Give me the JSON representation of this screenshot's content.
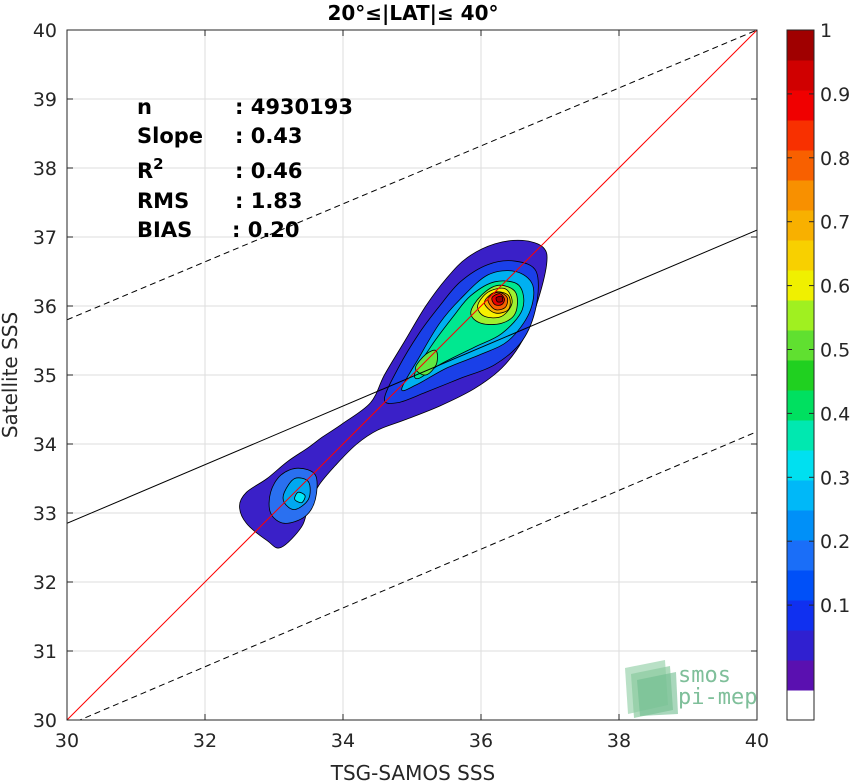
{
  "chart_data": {
    "type": "density-scatter",
    "title": "20°≤|LAT|≤ 40°",
    "xlabel": "TSG-SAMOS SSS",
    "ylabel": "Satellite SSS",
    "xlim": [
      30,
      40
    ],
    "ylim": [
      30,
      40
    ],
    "xticks": [
      30,
      32,
      34,
      36,
      38,
      40
    ],
    "yticks": [
      30,
      31,
      32,
      33,
      34,
      35,
      36,
      37,
      38,
      39,
      40
    ],
    "grid": true,
    "stats": [
      {
        "label": "n",
        "value": ": 4930193"
      },
      {
        "label": "Slope",
        "value": ": 0.43"
      },
      {
        "label": "R",
        "sup": "2",
        "value": ": 0.46"
      },
      {
        "label": "RMS",
        "value": ": 1.83"
      },
      {
        "label": "BIAS",
        "value": ": 0.20"
      }
    ],
    "lines": [
      {
        "name": "identity",
        "style": "solid",
        "color": "#ff0000",
        "points": [
          [
            30,
            30
          ],
          [
            40,
            40
          ]
        ]
      },
      {
        "name": "regression",
        "style": "solid",
        "color": "#000000",
        "points": [
          [
            30,
            32.85
          ],
          [
            40,
            37.1
          ]
        ]
      },
      {
        "name": "upper-bound",
        "style": "dashed",
        "color": "#000000",
        "points": [
          [
            30,
            35.8
          ],
          [
            40,
            40.0
          ]
        ]
      },
      {
        "name": "lower-bound",
        "style": "dashed",
        "color": "#000000",
        "points": [
          [
            30,
            29.92
          ],
          [
            40,
            34.18
          ]
        ]
      }
    ],
    "density_contours": [
      {
        "level": 0.05,
        "color": "#3a20c8",
        "points": [
          [
            32.5,
            33.1
          ],
          [
            32.6,
            33.3
          ],
          [
            32.9,
            33.5
          ],
          [
            33.2,
            33.75
          ],
          [
            33.5,
            33.95
          ],
          [
            33.7,
            34.1
          ],
          [
            34.0,
            34.3
          ],
          [
            34.4,
            34.6
          ],
          [
            34.6,
            35.0
          ],
          [
            34.9,
            35.5
          ],
          [
            35.2,
            36.0
          ],
          [
            35.5,
            36.4
          ],
          [
            35.8,
            36.7
          ],
          [
            36.2,
            36.9
          ],
          [
            36.6,
            36.95
          ],
          [
            36.9,
            36.85
          ],
          [
            36.95,
            36.6
          ],
          [
            36.8,
            36.0
          ],
          [
            36.6,
            35.5
          ],
          [
            36.3,
            35.1
          ],
          [
            35.9,
            34.8
          ],
          [
            35.4,
            34.55
          ],
          [
            34.9,
            34.35
          ],
          [
            34.5,
            34.2
          ],
          [
            34.2,
            34.0
          ],
          [
            33.9,
            33.7
          ],
          [
            33.65,
            33.4
          ],
          [
            33.5,
            33.1
          ],
          [
            33.4,
            32.8
          ],
          [
            33.1,
            32.5
          ],
          [
            32.9,
            32.6
          ],
          [
            32.6,
            32.85
          ]
        ]
      },
      {
        "level": 0.2,
        "color": "#2a70f0",
        "points": [
          [
            32.95,
            33.3
          ],
          [
            33.1,
            33.55
          ],
          [
            33.35,
            33.65
          ],
          [
            33.6,
            33.55
          ],
          [
            33.6,
            33.2
          ],
          [
            33.45,
            32.95
          ],
          [
            33.15,
            32.85
          ],
          [
            32.95,
            33.0
          ]
        ]
      },
      {
        "level": 0.3,
        "color": "#00a8f0",
        "points": [
          [
            33.15,
            33.3
          ],
          [
            33.3,
            33.5
          ],
          [
            33.5,
            33.45
          ],
          [
            33.5,
            33.2
          ],
          [
            33.3,
            33.05
          ],
          [
            33.15,
            33.15
          ]
        ]
      },
      {
        "level": 0.4,
        "color": "#00e8f8",
        "points": [
          [
            33.3,
            33.2
          ],
          [
            33.35,
            33.3
          ],
          [
            33.45,
            33.25
          ],
          [
            33.4,
            33.15
          ]
        ]
      },
      {
        "level": 0.2,
        "color": "#1a40e8",
        "points": [
          [
            34.6,
            34.65
          ],
          [
            34.8,
            35.1
          ],
          [
            35.1,
            35.6
          ],
          [
            35.4,
            36.0
          ],
          [
            35.7,
            36.35
          ],
          [
            36.1,
            36.6
          ],
          [
            36.5,
            36.65
          ],
          [
            36.8,
            36.5
          ],
          [
            36.8,
            36.0
          ],
          [
            36.6,
            35.5
          ],
          [
            36.2,
            35.15
          ],
          [
            35.7,
            34.95
          ],
          [
            35.2,
            34.75
          ],
          [
            34.8,
            34.6
          ]
        ]
      },
      {
        "level": 0.3,
        "color": "#00b0f0",
        "points": [
          [
            34.85,
            34.8
          ],
          [
            35.1,
            35.25
          ],
          [
            35.4,
            35.75
          ],
          [
            35.7,
            36.1
          ],
          [
            36.1,
            36.45
          ],
          [
            36.5,
            36.5
          ],
          [
            36.75,
            36.3
          ],
          [
            36.7,
            35.9
          ],
          [
            36.4,
            35.5
          ],
          [
            36.0,
            35.3
          ],
          [
            35.5,
            35.1
          ],
          [
            35.05,
            34.85
          ]
        ]
      },
      {
        "level": 0.45,
        "color": "#00e890",
        "points": [
          [
            35.05,
            35.05
          ],
          [
            35.3,
            35.45
          ],
          [
            35.6,
            35.85
          ],
          [
            35.85,
            36.15
          ],
          [
            36.2,
            36.35
          ],
          [
            36.55,
            36.3
          ],
          [
            36.6,
            35.95
          ],
          [
            36.3,
            35.6
          ],
          [
            35.9,
            35.4
          ],
          [
            35.4,
            35.15
          ],
          [
            35.1,
            34.95
          ]
        ]
      },
      {
        "level": 0.55,
        "color": "#a0f030",
        "points": [
          [
            35.85,
            35.9
          ],
          [
            36.0,
            36.15
          ],
          [
            36.25,
            36.3
          ],
          [
            36.5,
            36.2
          ],
          [
            36.5,
            35.9
          ],
          [
            36.3,
            35.75
          ],
          [
            36.0,
            35.75
          ]
        ]
      },
      {
        "level": 0.6,
        "color": "#f8f000",
        "points": [
          [
            35.95,
            36.0
          ],
          [
            36.1,
            36.2
          ],
          [
            36.35,
            36.25
          ],
          [
            36.45,
            36.05
          ],
          [
            36.3,
            35.85
          ],
          [
            36.05,
            35.85
          ]
        ]
      },
      {
        "level": 0.7,
        "color": "#f8b000",
        "points": [
          [
            36.05,
            36.05
          ],
          [
            36.2,
            36.2
          ],
          [
            36.4,
            36.15
          ],
          [
            36.4,
            35.95
          ],
          [
            36.2,
            35.9
          ]
        ]
      },
      {
        "level": 0.8,
        "color": "#f86000",
        "points": [
          [
            36.1,
            36.1
          ],
          [
            36.25,
            36.2
          ],
          [
            36.38,
            36.12
          ],
          [
            36.35,
            35.98
          ],
          [
            36.2,
            35.95
          ]
        ]
      },
      {
        "level": 0.9,
        "color": "#e80000",
        "points": [
          [
            36.16,
            36.12
          ],
          [
            36.27,
            36.18
          ],
          [
            36.34,
            36.1
          ],
          [
            36.3,
            36.02
          ],
          [
            36.2,
            36.02
          ]
        ]
      },
      {
        "level": 1.0,
        "color": "#a00000",
        "points": [
          [
            36.22,
            36.12
          ],
          [
            36.3,
            36.14
          ],
          [
            36.31,
            36.07
          ],
          [
            36.24,
            36.06
          ]
        ]
      },
      {
        "level": 0.45,
        "color": "#60e840",
        "points": [
          [
            35.05,
            35.1
          ],
          [
            35.2,
            35.3
          ],
          [
            35.35,
            35.35
          ],
          [
            35.35,
            35.15
          ],
          [
            35.2,
            35.0
          ]
        ]
      }
    ],
    "colorbar": {
      "ticks": [
        "0.1",
        "0.2",
        "0.3",
        "0.4",
        "0.5",
        "0.6",
        "0.7",
        "0.8",
        "0.9",
        "1"
      ],
      "tick_values": [
        0.1,
        0.2,
        0.3,
        0.4,
        0.5,
        0.6,
        0.7,
        0.8,
        0.9,
        1.0
      ],
      "range": [
        0.0,
        1.0
      ],
      "colors": [
        "#ffffff",
        "#5a10b0",
        "#3020d0",
        "#1030f0",
        "#0050f8",
        "#1a6ef8",
        "#0090f8",
        "#00b8f8",
        "#00e0f0",
        "#00e8b0",
        "#00e060",
        "#20d020",
        "#60e030",
        "#a0f020",
        "#f0f000",
        "#f8d000",
        "#f8b000",
        "#f89000",
        "#f86000",
        "#f83000",
        "#f00000",
        "#d00000",
        "#a00000"
      ]
    }
  },
  "watermark": {
    "line1": "smos",
    "line2": "pi-mep"
  }
}
